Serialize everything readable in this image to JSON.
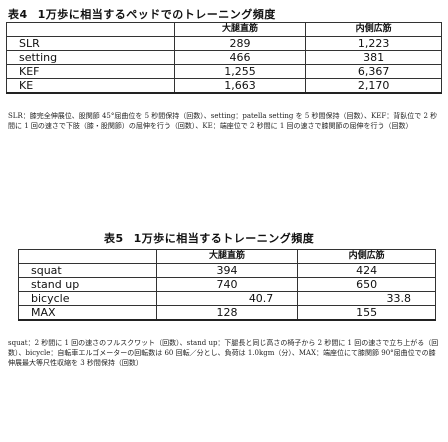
{
  "table4": {
    "number": "表4",
    "title": "1万歩に相当するペッドでのトレーニング頻度",
    "headers": [
      "",
      "大腿直筋",
      "内側広筋"
    ],
    "rows": [
      {
        "label": "SLR",
        "rectus": "289",
        "vastus": "1,223"
      },
      {
        "label": "setting",
        "rectus": "466",
        "vastus": "381"
      },
      {
        "label": "KEF",
        "rectus": "1,255",
        "vastus": "6,367"
      },
      {
        "label": "KE",
        "rectus": "1,663",
        "vastus": "2,170"
      }
    ],
    "note": "SLR：膝完全伸展位、股関節 45°屈曲位を 5 秒間保持（回数）、setting：patella setting を 5 秒間保持（回数）、KEF：背臥位で 2 秒間に 1 回の速さで下肢（膝・股関節）の屈伸を行う（回数）、KE：端座位で 2 秒間に 1 回の速さで膝関節の屈伸を行う（回数）"
  },
  "table5": {
    "number": "表5",
    "title": "1万歩に相当するトレーニング頻度",
    "headers": [
      "",
      "大腿直筋",
      "内側広筋"
    ],
    "rows": [
      {
        "label": "squat",
        "rectus": "394",
        "vastus": "424"
      },
      {
        "label": "stand up",
        "rectus": "740",
        "vastus": "650"
      },
      {
        "label": "bicycle",
        "rectus": "40.7",
        "vastus": "33.8"
      },
      {
        "label": "MAX",
        "rectus": "128",
        "vastus": "155"
      }
    ],
    "note": "squat：2 秒間に 1 回の速さのフルスクワット（回数）、stand up：下腿長と同じ高さの椅子から 2 秒間に 1 回の速さで立ち上がる（回数）、bicycle：自転車エルゴメーターの回転数は 60 回転／分とし、負荷は 1.0kgm（分）、MAX：端座位にて膝関節 90°屈曲位での膝伸展最大等尺性収縮を 3 秒間保持（回数）"
  }
}
